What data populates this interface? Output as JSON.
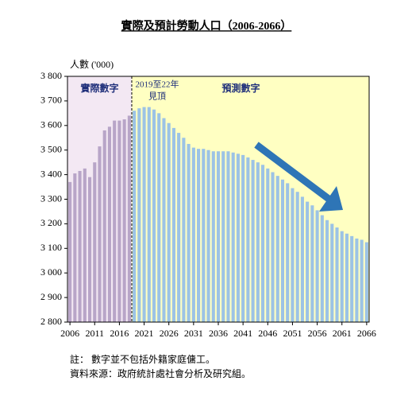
{
  "chart_data": {
    "type": "bar",
    "title": "實際及預計勞動人口（2006-2066）",
    "y_label": "人數 ('000)",
    "annotations": [
      "2019至22年",
      "見頂"
    ],
    "notes": [
      "註：  數字並不包括外籍家庭傭工。",
      "資料來源：政府統計處社會分析及研究組。"
    ],
    "x": [
      2006,
      2007,
      2008,
      2009,
      2010,
      2011,
      2012,
      2013,
      2014,
      2015,
      2016,
      2017,
      2018,
      2019,
      2020,
      2021,
      2022,
      2023,
      2024,
      2025,
      2026,
      2027,
      2028,
      2029,
      2030,
      2031,
      2032,
      2033,
      2034,
      2035,
      2036,
      2037,
      2038,
      2039,
      2040,
      2041,
      2042,
      2043,
      2044,
      2045,
      2046,
      2047,
      2048,
      2049,
      2050,
      2051,
      2052,
      2053,
      2054,
      2055,
      2056,
      2057,
      2058,
      2059,
      2060,
      2061,
      2062,
      2063,
      2064,
      2065,
      2066
    ],
    "series": [
      {
        "name": "實際數字",
        "color": "#b8a5c8",
        "background": "#f3e8f3",
        "values": [
          3370,
          3405,
          3415,
          3425,
          3390,
          3450,
          3515,
          3580,
          3595,
          3620,
          3620,
          3625,
          3640,
          null,
          null,
          null,
          null,
          null,
          null,
          null,
          null,
          null,
          null,
          null,
          null,
          null,
          null,
          null,
          null,
          null,
          null,
          null,
          null,
          null,
          null,
          null,
          null,
          null,
          null,
          null,
          null,
          null,
          null,
          null,
          null,
          null,
          null,
          null,
          null,
          null,
          null,
          null,
          null,
          null,
          null,
          null,
          null,
          null,
          null,
          null,
          null
        ]
      },
      {
        "name": "預測數字",
        "color": "#9cc3e5",
        "background": "#ffffc2",
        "values": [
          null,
          null,
          null,
          null,
          null,
          null,
          null,
          null,
          null,
          null,
          null,
          null,
          null,
          3660,
          3670,
          3675,
          3675,
          3665,
          3650,
          3630,
          3610,
          3590,
          3570,
          3550,
          3525,
          3510,
          3505,
          3505,
          3500,
          3495,
          3495,
          3495,
          3495,
          3490,
          3485,
          3480,
          3470,
          3460,
          3450,
          3440,
          3425,
          3410,
          3395,
          3380,
          3365,
          3345,
          3330,
          3310,
          3290,
          3275,
          3255,
          3235,
          3215,
          3200,
          3185,
          3170,
          3160,
          3150,
          3140,
          3135,
          3125
        ]
      }
    ],
    "xlim": [
      2005.5,
      2066.5
    ],
    "xticks": [
      2006,
      2011,
      2016,
      2021,
      2026,
      2031,
      2036,
      2041,
      2046,
      2051,
      2056,
      2061,
      2066
    ],
    "ylim": [
      2800,
      3800
    ],
    "yticks": [
      {
        "value": 2800,
        "label": "2 800"
      },
      {
        "value": 2900,
        "label": "2 900"
      },
      {
        "value": 3000,
        "label": "3 000"
      },
      {
        "value": 3100,
        "label": "3 100"
      },
      {
        "value": 3200,
        "label": "3 200"
      },
      {
        "value": 3300,
        "label": "3 300"
      },
      {
        "value": 3400,
        "label": "3 400"
      },
      {
        "value": 3500,
        "label": "3 500"
      },
      {
        "value": 3600,
        "label": "3 600"
      },
      {
        "value": 3700,
        "label": "3 700"
      },
      {
        "value": 3800,
        "label": "3 800"
      }
    ],
    "grid": false
  }
}
